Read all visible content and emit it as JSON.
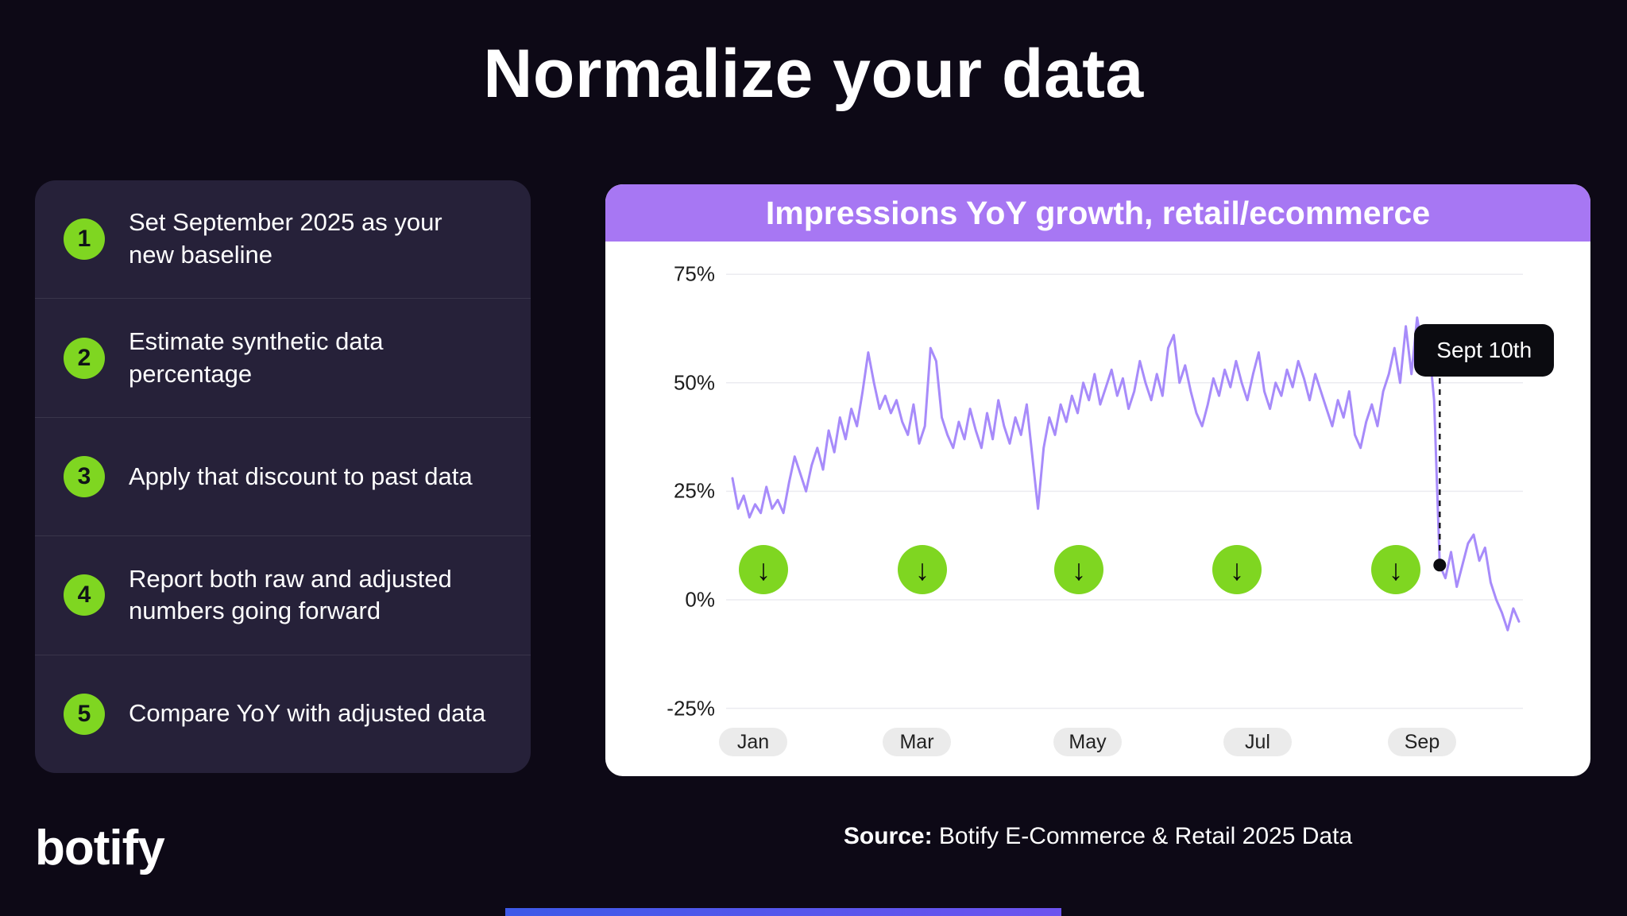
{
  "page": {
    "title": "Normalize your data",
    "logo": "botify",
    "source_label": "Source:",
    "source_text": " Botify E-Commerce & Retail 2025 Data"
  },
  "steps": [
    {
      "number": "1",
      "text": "Set September 2025 as your\nnew baseline"
    },
    {
      "number": "2",
      "text": "Estimate synthetic data percentage"
    },
    {
      "number": "3",
      "text": "Apply that discount to past data"
    },
    {
      "number": "4",
      "text": "Report both raw and adjusted\nnumbers going forward"
    },
    {
      "number": "5",
      "text": "Compare YoY with adjusted data"
    }
  ],
  "icons": {
    "arrow_down": "↓"
  },
  "colors": {
    "background": "#0d0916",
    "steps_card": "#262139",
    "accent_green": "#7fd621",
    "header_purple": "#a777f3",
    "line_purple": "#a78bfa",
    "tooltip_black": "#0b0b10"
  },
  "chart_data": {
    "type": "line",
    "title": "Impressions YoY growth, retail/ecommerce",
    "xlabel": "",
    "ylabel": "",
    "x_tick_labels": [
      "Jan",
      "Mar",
      "May",
      "Jul",
      "Sep"
    ],
    "y_tick_labels": [
      "75%",
      "50%",
      "25%",
      "0%",
      "-25%"
    ],
    "y_ticks": [
      75,
      50,
      25,
      0,
      -25
    ],
    "ylim": [
      -25,
      75
    ],
    "grid": true,
    "legend": false,
    "series": [
      {
        "name": "Impressions YoY growth",
        "color": "#a78bfa",
        "values": [
          28,
          21,
          24,
          19,
          22,
          20,
          26,
          21,
          23,
          20,
          27,
          33,
          29,
          25,
          31,
          35,
          30,
          39,
          34,
          42,
          37,
          44,
          40,
          48,
          57,
          50,
          44,
          47,
          43,
          46,
          41,
          38,
          45,
          36,
          40,
          58,
          55,
          42,
          38,
          35,
          41,
          37,
          44,
          39,
          35,
          43,
          37,
          46,
          40,
          36,
          42,
          38,
          45,
          33,
          21,
          35,
          42,
          38,
          45,
          41,
          47,
          43,
          50,
          46,
          52,
          45,
          49,
          53,
          47,
          51,
          44,
          48,
          55,
          50,
          46,
          52,
          47,
          58,
          61,
          50,
          54,
          48,
          43,
          40,
          45,
          51,
          47,
          53,
          49,
          55,
          50,
          46,
          52,
          57,
          48,
          44,
          50,
          47,
          53,
          49,
          55,
          51,
          46,
          52,
          48,
          44,
          40,
          46,
          42,
          48,
          38,
          35,
          41,
          45,
          40,
          48,
          52,
          58,
          50,
          63,
          52,
          65,
          57,
          60,
          46,
          8,
          5,
          11,
          3,
          8,
          13,
          15,
          9,
          12,
          4,
          0,
          -3,
          -7,
          -2,
          -5
        ]
      }
    ],
    "annotations": [
      {
        "label": "Sept 10th",
        "point_index": 125,
        "value": 8
      }
    ],
    "markers": {
      "icon": "arrow-down-icon",
      "color": "#7fd621",
      "count": 5
    }
  }
}
